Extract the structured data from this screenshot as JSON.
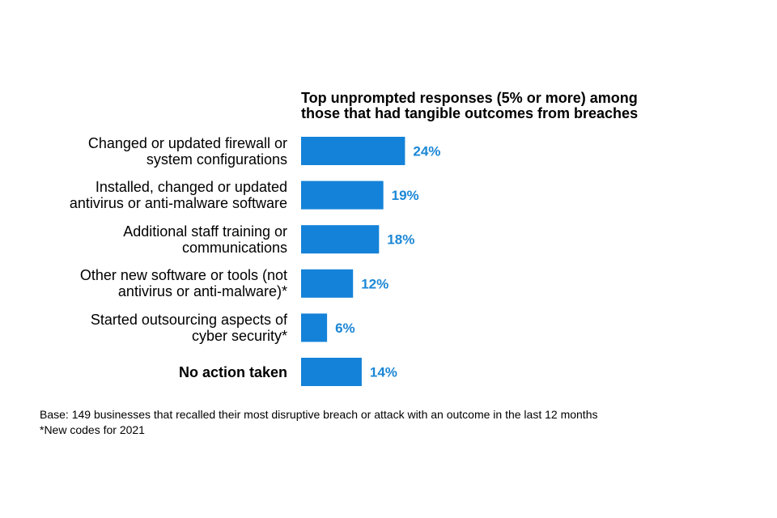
{
  "chart_data": {
    "type": "bar",
    "orientation": "horizontal",
    "title": [
      "Top unprompted responses (5%  or more) among",
      "those that had tangible outcomes from breaches"
    ],
    "categories": [
      [
        "Changed or updated firewall or",
        "system configurations"
      ],
      [
        "Installed, changed or updated",
        "antivirus or anti-malware software"
      ],
      [
        "Additional staff training or",
        "communications"
      ],
      [
        "Other new software or tools (not",
        "antivirus or anti-malware)*"
      ],
      [
        "Started outsourcing aspects of",
        "cyber security*"
      ],
      [
        "No action taken"
      ]
    ],
    "values": [
      24,
      19,
      18,
      12,
      6,
      14
    ],
    "value_labels": [
      "24%",
      "19%",
      "18%",
      "12%",
      "6%",
      "14%"
    ],
    "emphasized_category_index": 5,
    "bar_color": "#1482d8",
    "label_color": "#1b87d6",
    "xlim": [
      0,
      100
    ],
    "xlabel": "",
    "ylabel": "",
    "grid": false
  },
  "footnotes": {
    "base": "Base: 149 businesses that recalled their most disruptive breach or attack with an outcome in the last 12 months",
    "new_codes": "*New codes for 2021"
  }
}
